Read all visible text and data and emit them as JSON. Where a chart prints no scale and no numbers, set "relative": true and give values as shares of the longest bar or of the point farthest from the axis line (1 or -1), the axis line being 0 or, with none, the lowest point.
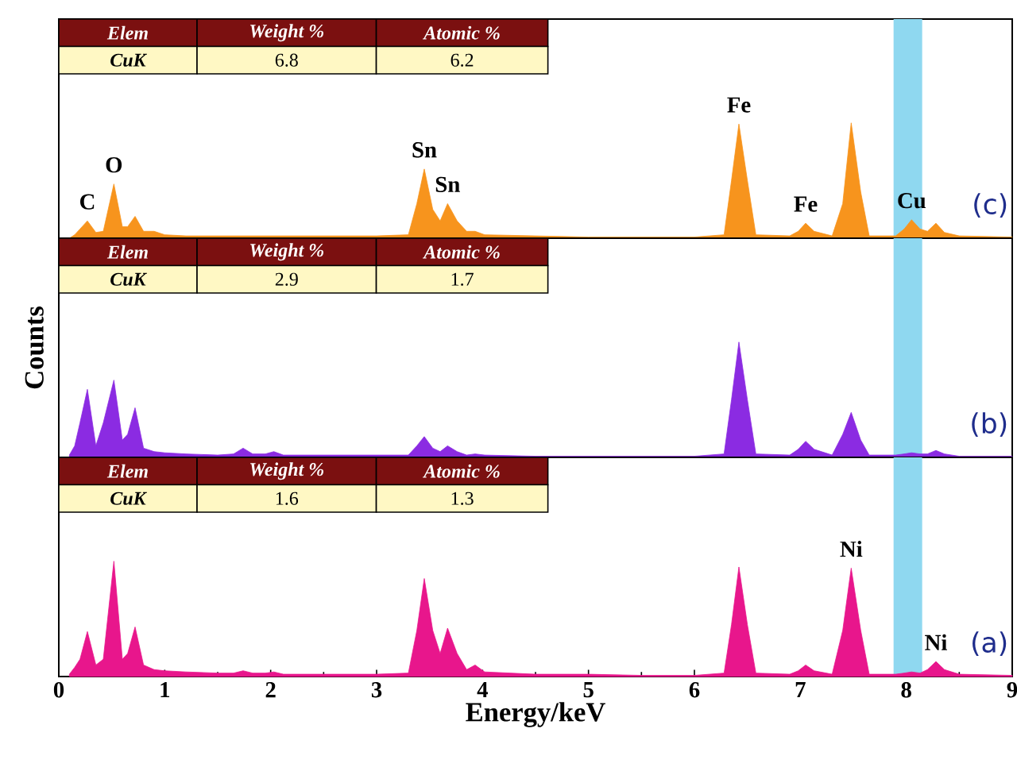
{
  "chart_data": [
    {
      "type": "area",
      "relative": true,
      "color": "#f7941d",
      "xlim": [
        0,
        9
      ],
      "tick_labels": false,
      "x": [
        0.1,
        0.15,
        0.2,
        0.27,
        0.35,
        0.42,
        0.52,
        0.6,
        0.65,
        0.72,
        0.8,
        0.9,
        1.0,
        1.2,
        1.5,
        1.65,
        1.74,
        1.83,
        1.95,
        2.03,
        2.12,
        2.5,
        3.0,
        3.3,
        3.38,
        3.45,
        3.53,
        3.6,
        3.67,
        3.76,
        3.85,
        3.93,
        4.02,
        4.5,
        5.0,
        5.5,
        6.0,
        6.28,
        6.35,
        6.42,
        6.5,
        6.58,
        6.9,
        6.98,
        7.05,
        7.13,
        7.3,
        7.4,
        7.48,
        7.57,
        7.65,
        7.9,
        7.98,
        8.05,
        8.13,
        8.2,
        8.28,
        8.36,
        8.5,
        9.0
      ],
      "values": [
        0,
        0.03,
        0.08,
        0.15,
        0.05,
        0.06,
        0.47,
        0.1,
        0.1,
        0.19,
        0.06,
        0.06,
        0.03,
        0.02,
        0.02,
        0.02,
        0.02,
        0.02,
        0.02,
        0.02,
        0.02,
        0.02,
        0.02,
        0.03,
        0.3,
        0.6,
        0.25,
        0.15,
        0.3,
        0.15,
        0.06,
        0.06,
        0.03,
        0.02,
        0.01,
        0.01,
        0.01,
        0.03,
        0.5,
        0.99,
        0.5,
        0.03,
        0.02,
        0.06,
        0.13,
        0.06,
        0.02,
        0.3,
        1.0,
        0.4,
        0.02,
        0.02,
        0.08,
        0.16,
        0.08,
        0.06,
        0.13,
        0.05,
        0.02,
        0.01
      ],
      "bands": [
        {
          "axis": "x",
          "from": 7.88,
          "to": 8.15,
          "color": "#8fd8f0"
        }
      ],
      "annotations": [
        "Elem",
        "Weight %",
        "Atomic %",
        "CuK",
        "6.8",
        "6.2",
        "(c)",
        {
          "text": "C",
          "x": 0.27,
          "y": 0.15
        },
        {
          "text": "O",
          "x": 0.52,
          "y": 0.47
        },
        {
          "text": "Sn",
          "x": 3.45,
          "y": 0.6
        },
        {
          "text": "Sn",
          "x": 3.67,
          "y": 0.3
        },
        {
          "text": "Fe",
          "x": 6.42,
          "y": 0.99
        },
        {
          "text": "Fe",
          "x": 7.05,
          "y": 0.13
        },
        {
          "text": "Cu",
          "x": 8.05,
          "y": 0.16
        }
      ]
    },
    {
      "type": "area",
      "relative": true,
      "color": "#8b2be2",
      "xlim": [
        0,
        9
      ],
      "tick_labels": false,
      "ylabel": "Counts",
      "x": [
        0.1,
        0.15,
        0.2,
        0.27,
        0.35,
        0.42,
        0.52,
        0.6,
        0.65,
        0.72,
        0.8,
        0.9,
        1.0,
        1.2,
        1.5,
        1.65,
        1.74,
        1.83,
        1.95,
        2.03,
        2.12,
        2.5,
        3.0,
        3.3,
        3.38,
        3.45,
        3.53,
        3.6,
        3.67,
        3.76,
        3.85,
        3.93,
        4.02,
        4.5,
        5.0,
        5.5,
        6.0,
        6.28,
        6.35,
        6.42,
        6.5,
        6.58,
        6.9,
        6.98,
        7.05,
        7.13,
        7.3,
        7.4,
        7.48,
        7.57,
        7.65,
        7.9,
        7.98,
        8.05,
        8.13,
        8.2,
        8.28,
        8.36,
        8.5,
        9.0
      ],
      "values": [
        0.02,
        0.1,
        0.3,
        0.59,
        0.1,
        0.3,
        0.67,
        0.15,
        0.2,
        0.43,
        0.08,
        0.05,
        0.04,
        0.03,
        0.02,
        0.03,
        0.08,
        0.03,
        0.03,
        0.05,
        0.02,
        0.02,
        0.02,
        0.02,
        0.1,
        0.18,
        0.08,
        0.05,
        0.1,
        0.05,
        0.02,
        0.03,
        0.02,
        0.01,
        0.01,
        0.01,
        0.01,
        0.03,
        0.5,
        1.0,
        0.5,
        0.03,
        0.02,
        0.07,
        0.14,
        0.07,
        0.02,
        0.2,
        0.39,
        0.15,
        0.02,
        0.02,
        0.03,
        0.04,
        0.03,
        0.03,
        0.06,
        0.03,
        0.01,
        0.01
      ],
      "bands": [
        {
          "axis": "x",
          "from": 7.88,
          "to": 8.15,
          "color": "#8fd8f0"
        }
      ],
      "annotations": [
        "Elem",
        "Weight %",
        "Atomic %",
        "CuK",
        "2.9",
        "1.7",
        "(b)"
      ]
    },
    {
      "type": "area",
      "relative": true,
      "color": "#e8168c",
      "xlim": [
        0,
        9
      ],
      "xticks": [
        0,
        1,
        2,
        3,
        4,
        5,
        6,
        7,
        8,
        9
      ],
      "tick_labels": "x",
      "xlabel": "Energy/keV",
      "x": [
        0.1,
        0.15,
        0.2,
        0.27,
        0.35,
        0.42,
        0.52,
        0.6,
        0.65,
        0.72,
        0.8,
        0.9,
        1.0,
        1.2,
        1.5,
        1.65,
        1.74,
        1.83,
        1.95,
        2.03,
        2.12,
        2.5,
        3.0,
        3.3,
        3.38,
        3.45,
        3.53,
        3.6,
        3.67,
        3.76,
        3.85,
        3.93,
        4.02,
        4.5,
        5.0,
        5.5,
        6.0,
        6.28,
        6.35,
        6.42,
        6.5,
        6.58,
        6.9,
        6.98,
        7.05,
        7.13,
        7.3,
        7.4,
        7.48,
        7.57,
        7.65,
        7.9,
        7.98,
        8.05,
        8.13,
        8.2,
        8.28,
        8.36,
        8.5,
        9.0
      ],
      "values": [
        0.02,
        0.08,
        0.15,
        0.39,
        0.1,
        0.15,
        1.0,
        0.15,
        0.2,
        0.43,
        0.1,
        0.06,
        0.05,
        0.04,
        0.03,
        0.03,
        0.05,
        0.03,
        0.03,
        0.04,
        0.02,
        0.02,
        0.02,
        0.03,
        0.4,
        0.85,
        0.4,
        0.2,
        0.42,
        0.2,
        0.06,
        0.1,
        0.04,
        0.02,
        0.02,
        0.01,
        0.01,
        0.03,
        0.45,
        0.95,
        0.45,
        0.03,
        0.02,
        0.05,
        0.1,
        0.05,
        0.02,
        0.4,
        0.94,
        0.4,
        0.02,
        0.02,
        0.03,
        0.04,
        0.03,
        0.06,
        0.13,
        0.06,
        0.02,
        0.01
      ],
      "bands": [
        {
          "axis": "x",
          "from": 7.88,
          "to": 8.15,
          "color": "#8fd8f0"
        }
      ],
      "annotations": [
        "Elem",
        "Weight %",
        "Atomic %",
        "CuK",
        "1.6",
        "1.3",
        "(a)",
        {
          "text": "Ni",
          "x": 7.48,
          "y": 0.94
        },
        {
          "text": "Ni",
          "x": 8.28,
          "y": 0.13
        }
      ]
    }
  ]
}
